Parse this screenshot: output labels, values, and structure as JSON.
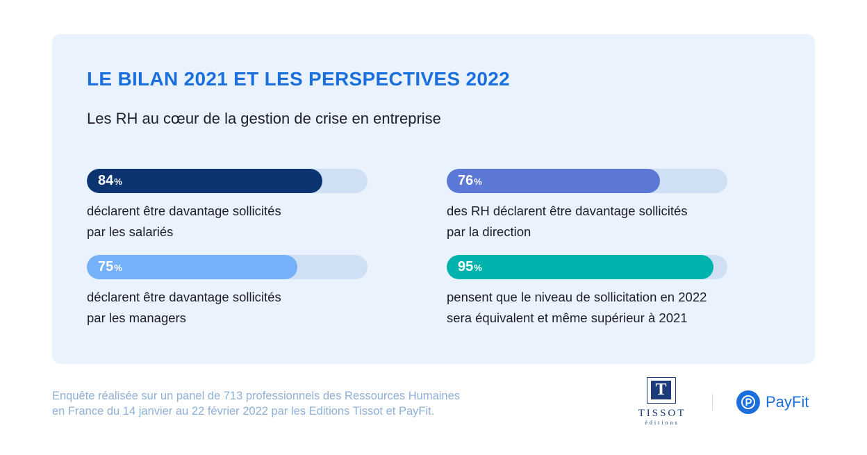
{
  "header": {
    "title": "LE BILAN 2021 ET LES PERSPECTIVES 2022",
    "subtitle": "Les RH au cœur de la gestion de crise en entreprise"
  },
  "percent_symbol": "%",
  "stats": [
    {
      "value": 84,
      "label": "84",
      "line1": "déclarent être davantage sollicités",
      "line2": "par les salariés",
      "color": "#0b3470"
    },
    {
      "value": 76,
      "label": "76",
      "line1": "des RH déclarent être davantage sollicités",
      "line2": "par la direction",
      "color": "#5b78d6"
    },
    {
      "value": 75,
      "label": "75",
      "line1": "déclarent être davantage sollicités",
      "line2": "par les managers",
      "color": "#74b1fa"
    },
    {
      "value": 95,
      "label": "95",
      "line1": "pensent que le niveau de sollicitation en 2022",
      "line2": "sera équivalent et même supérieur à 2021",
      "color": "#00b3ad"
    }
  ],
  "chart_data": {
    "type": "bar",
    "title": "LE BILAN 2021 ET LES PERSPECTIVES 2022",
    "subtitle": "Les RH au cœur de la gestion de crise en entreprise",
    "categories": [
      "déclarent être davantage sollicités par les salariés",
      "des RH déclarent être davantage sollicités par la direction",
      "déclarent être davantage sollicités par les managers",
      "pensent que le niveau de sollicitation en 2022 sera équivalent et même supérieur à 2021"
    ],
    "values": [
      84,
      76,
      75,
      95
    ],
    "unit": "%",
    "ylim": [
      0,
      100
    ]
  },
  "footnote": {
    "line1": "Enquête réalisée sur un panel de 713 professionnels des Ressources Humaines",
    "line2": "en France du 14 janvier au 22 février 2022 par les Editions Tissot et PayFit."
  },
  "logos": {
    "tissot": {
      "letter": "T",
      "word": "TISSOT",
      "sub": "éditions"
    },
    "payfit": {
      "name": "PayFit",
      "color": "#1a6fdc"
    }
  }
}
